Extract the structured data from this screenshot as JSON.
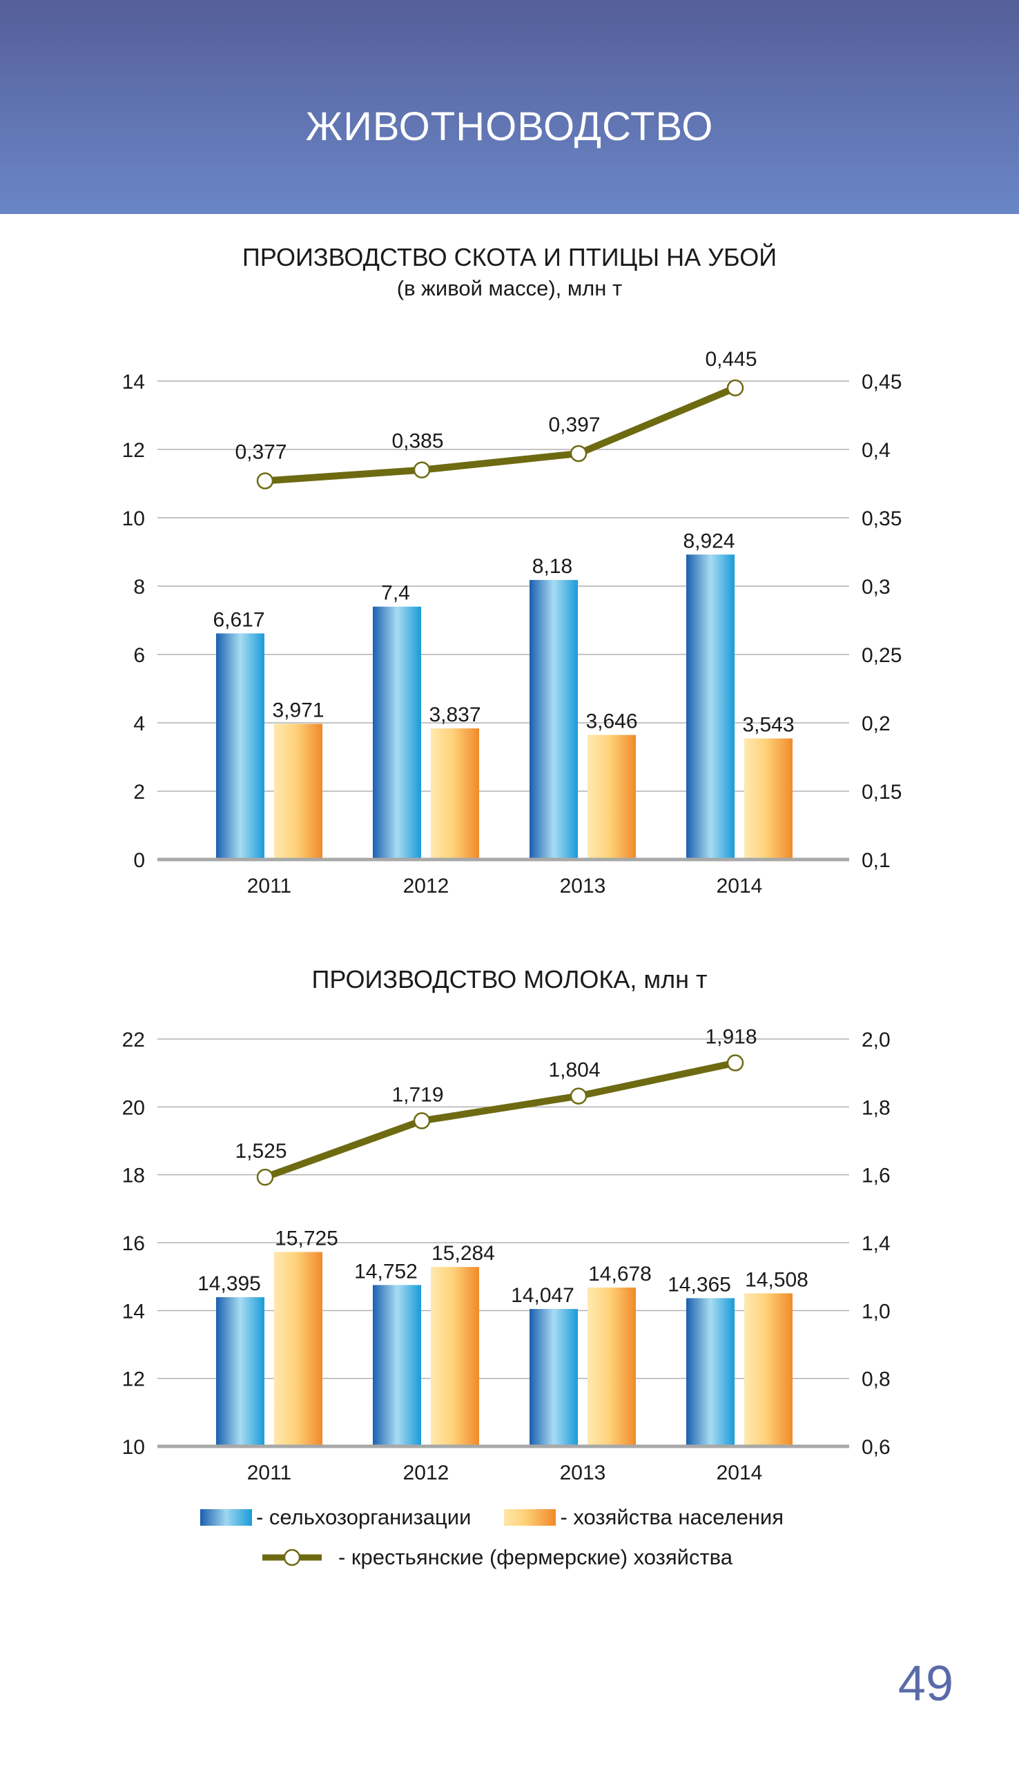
{
  "header": {
    "title": "ЖИВОТНОВОДСТВО"
  },
  "page_number": "49",
  "legend": {
    "series1": "- сельхозорганизации",
    "series2": "- хозяйства населения",
    "series3": "- крестьянские (фермерские) хозяйства"
  },
  "colors": {
    "line": "#6e6a12",
    "bar_blue": "#1a9bd8",
    "bar_orange": "#f08a2a",
    "header": "#5e70b0"
  },
  "chart_data": [
    {
      "type": "bar",
      "title": "ПРОИЗВОДСТВО СКОТА И ПТИЦЫ НА УБОЙ",
      "subtitle": "(в живой массе), млн т",
      "categories": [
        "2011",
        "2012",
        "2013",
        "2014"
      ],
      "ylim": [
        0,
        14
      ],
      "yticks": [
        "0",
        "2",
        "4",
        "6",
        "8",
        "10",
        "12",
        "14"
      ],
      "y2lim": [
        0.1,
        0.45
      ],
      "y2ticks": [
        "0,1",
        "0,15",
        "0,2",
        "0,25",
        "0,3",
        "0,35",
        "0,4",
        "0,45"
      ],
      "grid": true,
      "series": [
        {
          "values": [
            6.617,
            7.4,
            8.18,
            8.924
          ],
          "labels": [
            "6,617",
            "7,4",
            "8,18",
            "8,924"
          ],
          "axis": "left",
          "kind": "bar"
        },
        {
          "values": [
            3.971,
            3.837,
            3.646,
            3.543
          ],
          "labels": [
            "3,971",
            "3,837",
            "3,646",
            "3,543"
          ],
          "axis": "left",
          "kind": "bar"
        },
        {
          "values": [
            0.377,
            0.385,
            0.397,
            0.445
          ],
          "labels": [
            "0,377",
            "0,385",
            "0,397",
            "0,445"
          ],
          "axis": "right",
          "kind": "line"
        }
      ]
    },
    {
      "type": "bar",
      "title": "ПРОИЗВОДСТВО МОЛОКА,  млн т",
      "categories": [
        "2011",
        "2012",
        "2013",
        "2014"
      ],
      "ylim": [
        10,
        22
      ],
      "yticks": [
        "10",
        "12",
        "14",
        "16",
        "18",
        "20",
        "22"
      ],
      "y2lim": [
        0.6,
        2.0
      ],
      "y2ticks": [
        "0,6",
        "0,8",
        "1,0",
        "1,4",
        "1,6",
        "1,8",
        "2,0"
      ],
      "grid": true,
      "series": [
        {
          "values": [
            14.395,
            14.752,
            14.047,
            14.365
          ],
          "labels": [
            "14,395",
            "14,752",
            "14,047",
            "14,365"
          ],
          "axis": "left",
          "kind": "bar"
        },
        {
          "values": [
            15.725,
            15.284,
            14.678,
            14.508
          ],
          "labels": [
            "15,725",
            "15,284",
            "14,678",
            "14,508"
          ],
          "axis": "left",
          "kind": "bar"
        },
        {
          "values": [
            1.525,
            1.719,
            1.804,
            1.918
          ],
          "labels": [
            "1,525",
            "1,719",
            "1,804",
            "1,918"
          ],
          "axis": "right",
          "kind": "line"
        }
      ]
    }
  ]
}
